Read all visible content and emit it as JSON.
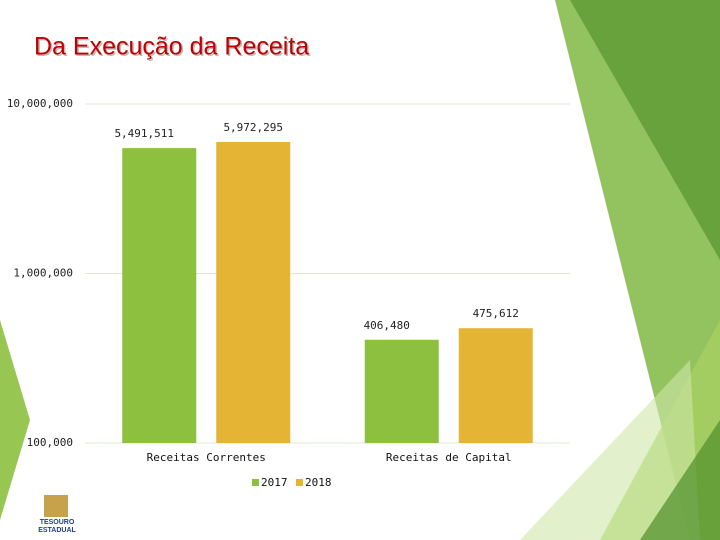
{
  "chart_data": {
    "type": "bar",
    "title": "Da Execução da Receita",
    "categories": [
      "Receitas Correntes",
      "Receitas de Capital"
    ],
    "series": [
      {
        "name": "2017",
        "color": "#8dc03f",
        "values": [
          5491511,
          406480
        ],
        "value_labels": [
          "5,491,511",
          "406,480"
        ]
      },
      {
        "name": "2018",
        "color": "#e4b535",
        "values": [
          5972295,
          475612
        ],
        "value_labels": [
          "5,972,295",
          "475,612"
        ]
      }
    ],
    "log_scale": true,
    "ylim": [
      100000,
      10000000
    ],
    "yticks": [
      {
        "value": 100000,
        "label": "100,000"
      },
      {
        "value": 1000000,
        "label": "1,000,000"
      },
      {
        "value": 10000000,
        "label": "10,000,000"
      }
    ],
    "grid": true,
    "legend": "bottom"
  },
  "logo": {
    "lines": [
      "TESOURO",
      "ESTADUAL"
    ]
  }
}
